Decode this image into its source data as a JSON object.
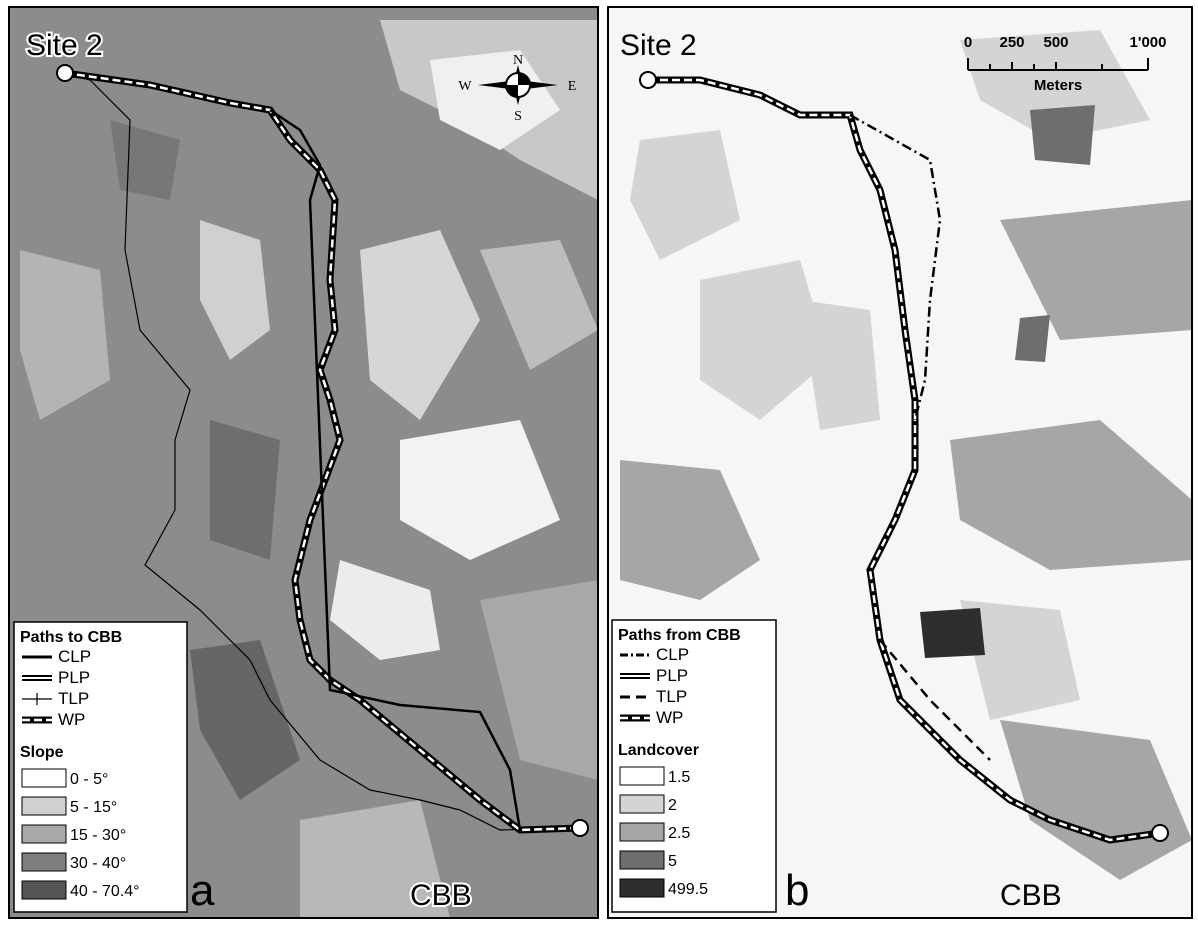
{
  "panels": [
    {
      "site_label": "Site 2",
      "panel_letter": "a",
      "end_label": "CBB",
      "compass": {
        "n": "N",
        "s": "S",
        "e": "E",
        "w": "W"
      },
      "legend": {
        "paths_title": "Paths to CBB",
        "paths": [
          "CLP",
          "PLP",
          "TLP",
          "WP"
        ],
        "classes_title": "Slope",
        "classes": [
          {
            "label": "0 - 5°",
            "color": "#ffffff"
          },
          {
            "label": "5 - 15°",
            "color": "#d0d0d0"
          },
          {
            "label": "15 - 30°",
            "color": "#a8a8a8"
          },
          {
            "label": "30 - 40°",
            "color": "#7e7e7e"
          },
          {
            "label": "40 - 70.4°",
            "color": "#555555"
          }
        ]
      }
    },
    {
      "site_label": "Site 2",
      "panel_letter": "b",
      "end_label": "CBB",
      "scale_bar": {
        "labels": [
          "0",
          "250",
          "500",
          "1'000"
        ],
        "unit": "Meters"
      },
      "legend": {
        "paths_title": "Paths from CBB",
        "paths": [
          "CLP",
          "PLP",
          "TLP",
          "WP"
        ],
        "classes_title": "Landcover",
        "classes": [
          {
            "label": "1.5",
            "color": "#ffffff"
          },
          {
            "label": "2",
            "color": "#d4d4d4"
          },
          {
            "label": "2.5",
            "color": "#a6a6a6"
          },
          {
            "label": "5",
            "color": "#6e6e6e"
          },
          {
            "label": "499.5",
            "color": "#2e2e2e"
          }
        ]
      }
    }
  ]
}
